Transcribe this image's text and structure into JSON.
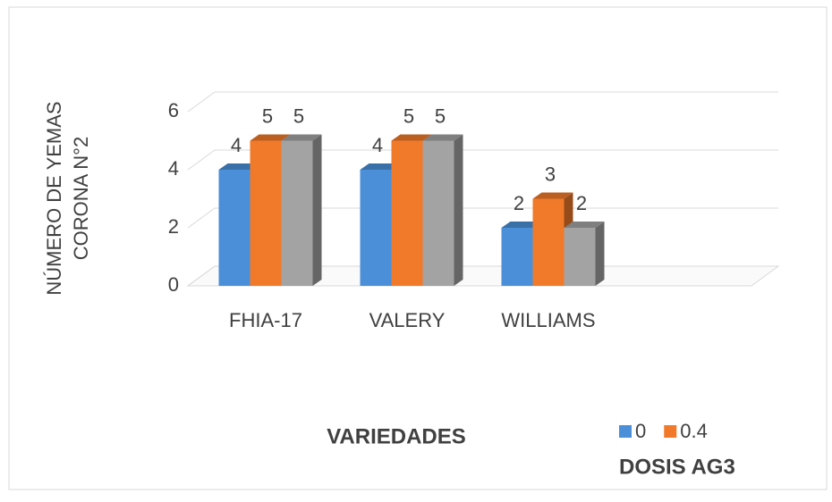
{
  "chart_data": {
    "type": "bar3d",
    "ylabel": [
      "NÚMERO DE YEMAS",
      "CORONA N°2"
    ],
    "xlabel": "VARIEDADES",
    "legend_title": "DOSIS AG3",
    "categories": [
      "FHIA-17",
      "VALERY",
      "WILLIAMS"
    ],
    "series": [
      {
        "name": "0",
        "color": "#4a8fd8",
        "values": [
          4,
          4,
          2
        ]
      },
      {
        "name": "0.4",
        "color": "#f07a2a",
        "values": [
          5,
          5,
          3
        ]
      },
      {
        "color": "#a3a3a3",
        "values": [
          5,
          5,
          2
        ]
      }
    ],
    "ylim": [
      0,
      6
    ],
    "yticks": [
      0,
      2,
      4,
      6
    ],
    "grid": true
  }
}
